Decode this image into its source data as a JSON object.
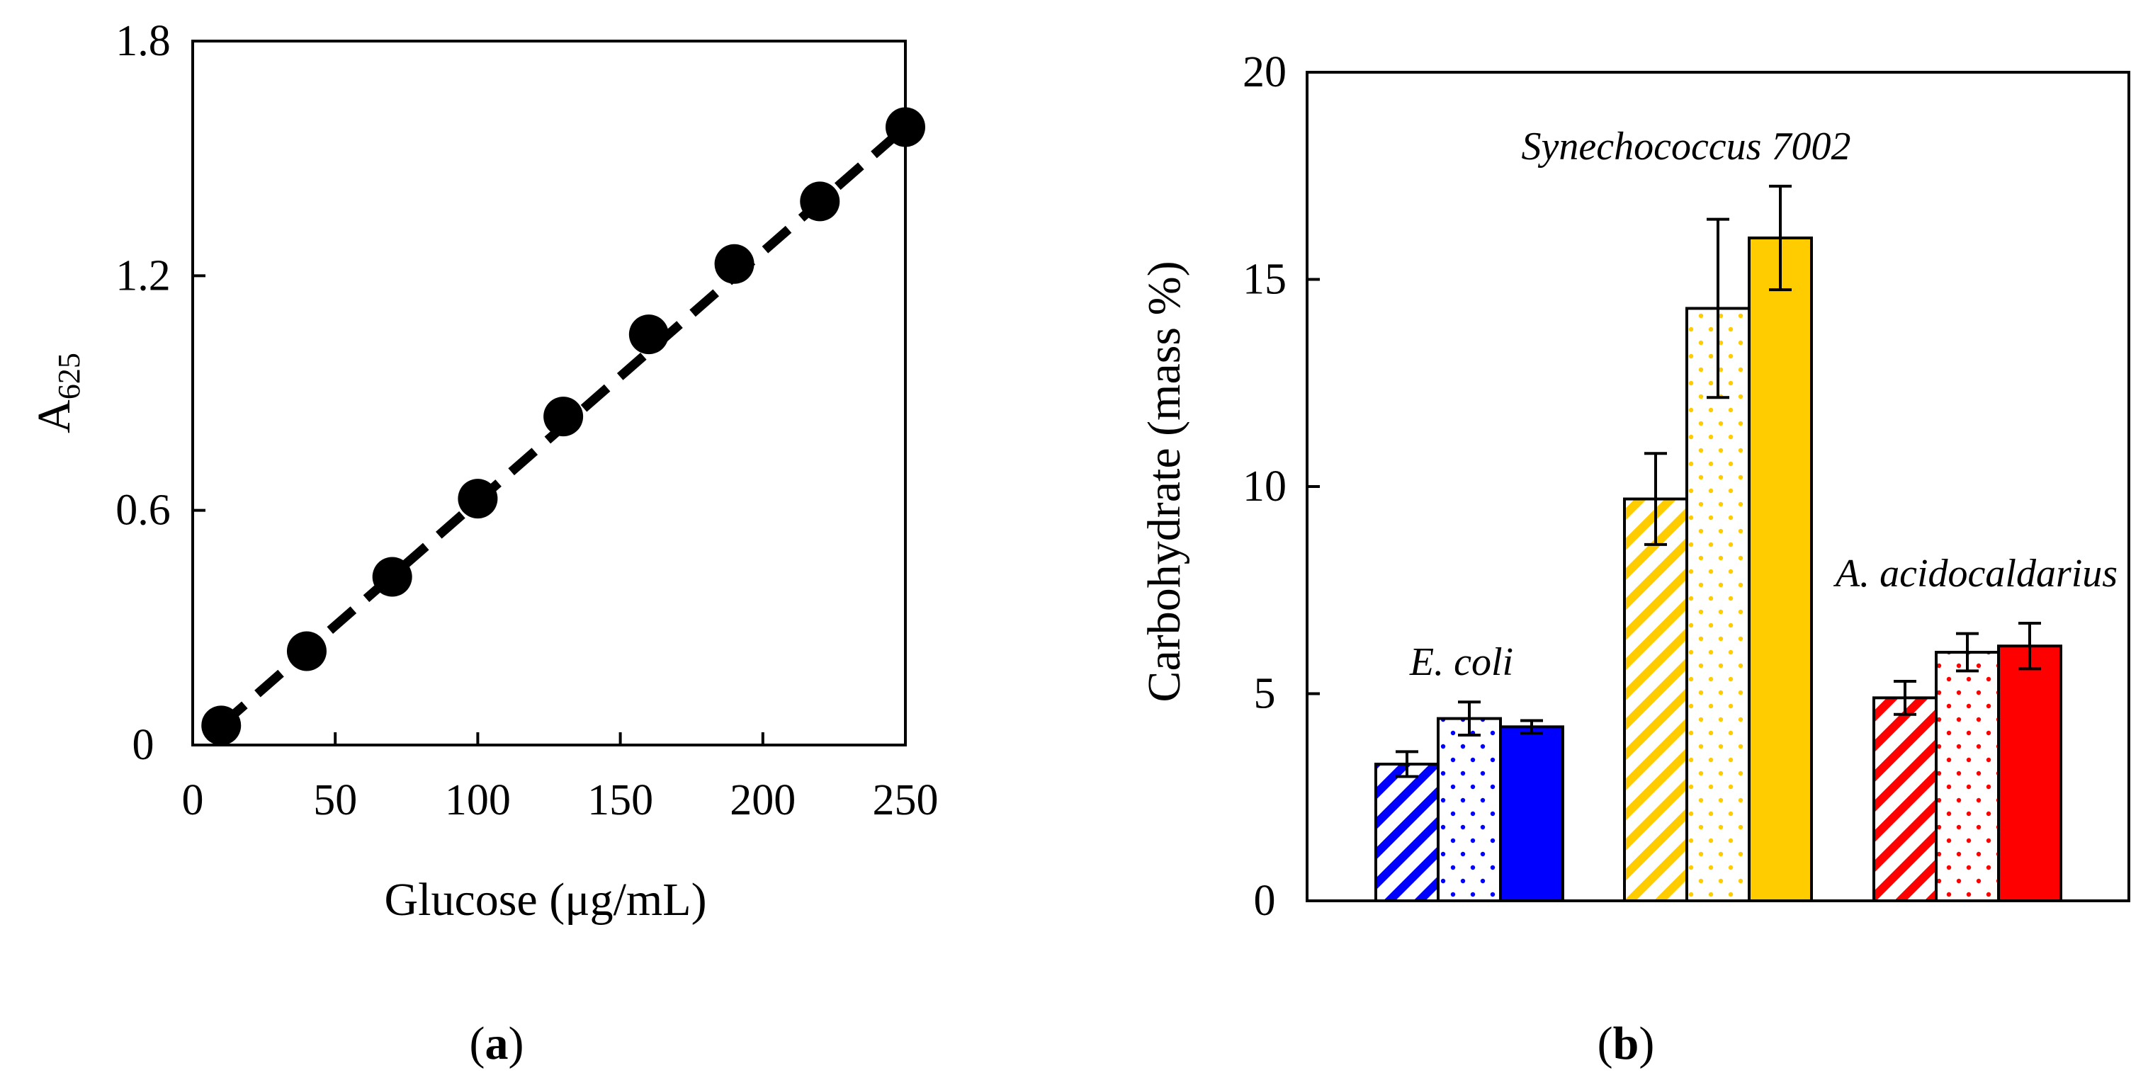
{
  "chart_data": [
    {
      "type": "scatter",
      "panel_label": "a",
      "xlabel": "Glucose (μg/mL)",
      "ylabel": {
        "main": "A",
        "subscript": "625"
      },
      "xlim": [
        0,
        250
      ],
      "ylim": [
        0,
        1.8
      ],
      "xticks": [
        "0",
        "50",
        "100",
        "150",
        "200",
        "250"
      ],
      "yticks": [
        "0",
        "0.6",
        "1.2",
        "1.8"
      ],
      "xtick_values": [
        0,
        50,
        100,
        150,
        200,
        250
      ],
      "ytick_values": [
        0,
        0.6,
        1.2,
        1.8
      ],
      "x": [
        10,
        40,
        70,
        100,
        130,
        160,
        190,
        220,
        250
      ],
      "y": [
        0.05,
        0.24,
        0.43,
        0.63,
        0.84,
        1.05,
        1.23,
        1.39,
        1.58
      ],
      "fit_line": {
        "style": "dashed",
        "x": [
          10,
          250
        ],
        "y": [
          0.05,
          1.58
        ]
      },
      "marker_color": "#000000"
    },
    {
      "type": "bar",
      "panel_label": "b",
      "ylabel": "Carbohydrate (mass %)",
      "ylim": [
        0,
        20
      ],
      "yticks": [
        "0",
        "5",
        "10",
        "15",
        "20"
      ],
      "ytick_values": [
        0,
        5,
        10,
        15,
        20
      ],
      "groups": [
        {
          "name": "E. coli",
          "color": "#0000ff",
          "values": [
            3.3,
            4.4,
            4.2
          ],
          "errors": [
            0.3,
            0.4,
            0.15
          ]
        },
        {
          "name": "Synechococcus 7002",
          "color": "#ffcc00",
          "values": [
            9.7,
            14.3,
            16.0
          ],
          "errors": [
            1.1,
            2.15,
            1.25
          ]
        },
        {
          "name": "A. acidocaldarius",
          "color": "#ff0000",
          "values": [
            4.9,
            6.0,
            6.15
          ],
          "errors": [
            0.4,
            0.45,
            0.55
          ]
        }
      ],
      "bar_patterns": [
        "diagonal-stripes",
        "dots",
        "solid"
      ]
    }
  ]
}
